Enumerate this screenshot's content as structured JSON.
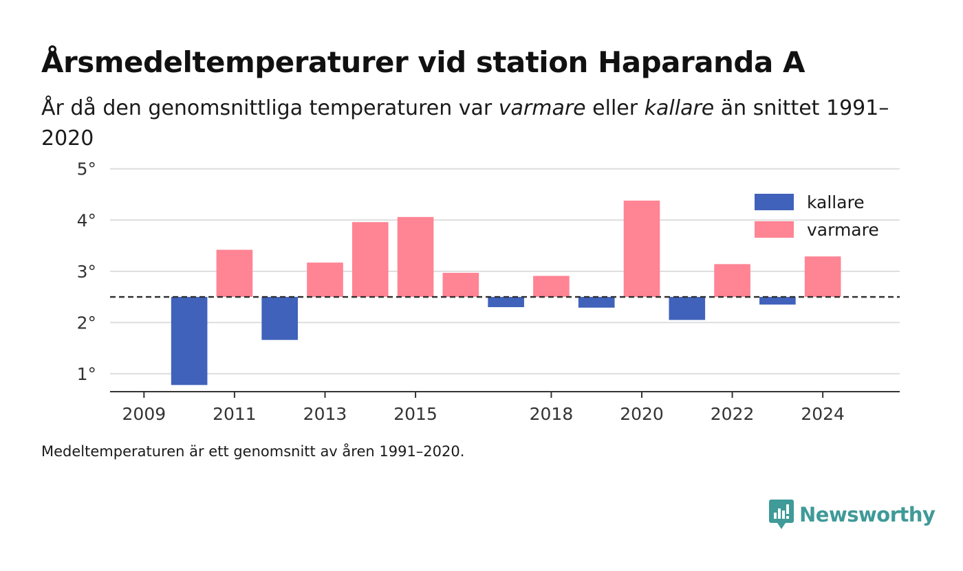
{
  "title": "Årsmedeltemperaturer vid station Haparanda A",
  "subtitle": {
    "part1": "År då den genomsnittliga temperaturen var ",
    "warm_word": "varmare",
    "part2": " eller ",
    "cold_word": "kallare",
    "part3": " än snittet 1991–2020"
  },
  "footnote": "Medeltemperaturen är ett genomsnitt av åren 1991–2020.",
  "brand": {
    "name": "Newsworthy",
    "icon": "newsworthy-logo-icon",
    "color": "#3f9a98"
  },
  "colors": {
    "kallare": "#4062bb",
    "varmare": "#ff8494",
    "baseline": "#333333",
    "grid": "#dddddd"
  },
  "chart_data": {
    "type": "bar",
    "x": [
      2010,
      2011,
      2012,
      2013,
      2014,
      2015,
      2016,
      2017,
      2018,
      2019,
      2020,
      2021,
      2022,
      2023,
      2024
    ],
    "values": [
      0.78,
      3.42,
      1.66,
      3.17,
      3.96,
      4.06,
      2.97,
      2.3,
      2.91,
      2.29,
      4.38,
      2.05,
      3.14,
      2.35,
      3.29
    ],
    "baseline": 2.5,
    "series": [
      {
        "name": "kallare",
        "color": "#4062bb"
      },
      {
        "name": "varmare",
        "color": "#ff8494"
      }
    ],
    "y_ticks": [
      1,
      2,
      3,
      4,
      5
    ],
    "y_tick_labels": [
      "1°",
      "2°",
      "3°",
      "4°",
      "5°"
    ],
    "x_ticks": [
      2009,
      2011,
      2013,
      2015,
      2018,
      2020,
      2022,
      2024
    ],
    "x_tick_labels": [
      "2009",
      "2011",
      "2013",
      "2015",
      "2018",
      "2020",
      "2022",
      "2024"
    ],
    "ylim": [
      0.65,
      5.05
    ],
    "xlim": [
      2008.25,
      2025.7
    ],
    "grid": true,
    "legend_position": "top-right"
  }
}
